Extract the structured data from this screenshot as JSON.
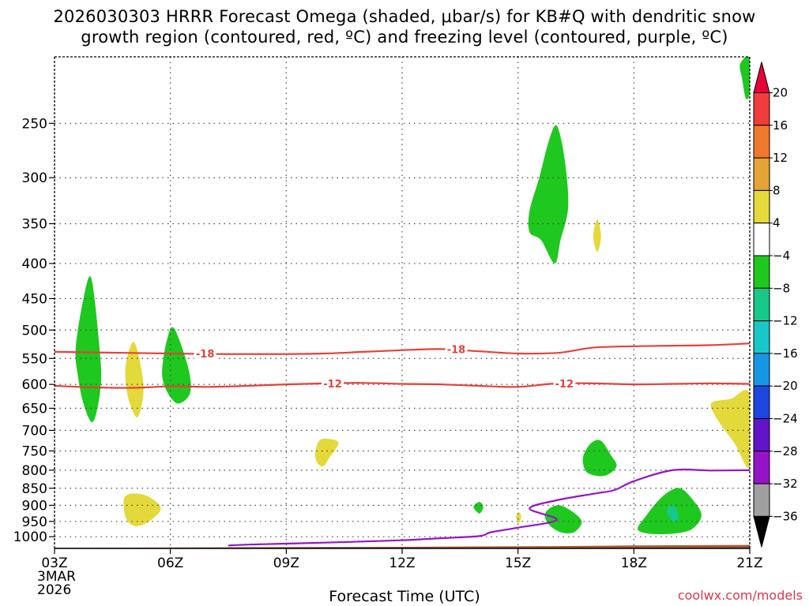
{
  "title": {
    "line1": "2026030303 HRRR Forecast Omega (shaded, μbar/s) for KB#Q with dendritic snow",
    "line2": "growth region (contoured, red, ºC) and freezing level (contoured, purple, ºC)"
  },
  "xlabel": "Forecast Time (UTC)",
  "credit": "coolwx.com/models",
  "chart_data": {
    "type": "heatmap",
    "title": "2026030303 HRRR Forecast Omega (shaded, μbar/s) for KB#Q with dendritic snow growth region (contoured, red, ºC) and freezing level (contoured, purple, ºC)",
    "xlabel": "Forecast Time (UTC)",
    "ylabel": "",
    "x_unit": "forecast hour UTC",
    "xlim": [
      3,
      21
    ],
    "ylim": [
      1040,
      200
    ],
    "y_scale": "log",
    "x_ticks": [
      {
        "x": 3,
        "label": "03Z",
        "sub": [
          "3MAR",
          "2026"
        ]
      },
      {
        "x": 6,
        "label": "06Z"
      },
      {
        "x": 9,
        "label": "09Z"
      },
      {
        "x": 12,
        "label": "12Z"
      },
      {
        "x": 15,
        "label": "15Z"
      },
      {
        "x": 18,
        "label": "18Z"
      },
      {
        "x": 21,
        "label": "21Z"
      }
    ],
    "y_ticks": [
      250,
      300,
      350,
      400,
      450,
      500,
      550,
      600,
      650,
      700,
      750,
      800,
      850,
      900,
      950,
      1000
    ],
    "grid": true,
    "colorbar": {
      "position": "right",
      "levels": [
        20,
        16,
        12,
        8,
        4,
        -4,
        -8,
        -12,
        -16,
        -20,
        -24,
        -28,
        -32,
        -36
      ],
      "colors": [
        "#e8003a",
        "#f03c3a",
        "#ef7a2e",
        "#e4a536",
        "#e4d93a",
        "#ffffff",
        "#1ec81e",
        "#16c88a",
        "#18c8c8",
        "#1896e6",
        "#1e46e0",
        "#6414c8",
        "#9614c8",
        "#a0a0a0",
        "#000000"
      ]
    },
    "contours": [
      {
        "name": "-18",
        "color": "#e8403a",
        "points": [
          [
            3,
            538
          ],
          [
            4,
            539
          ],
          [
            5,
            540
          ],
          [
            6,
            541
          ],
          [
            7,
            542
          ],
          [
            8,
            542
          ],
          [
            9,
            542
          ],
          [
            10,
            541
          ],
          [
            11,
            538
          ],
          [
            12,
            535
          ],
          [
            13,
            533
          ],
          [
            14,
            537
          ],
          [
            15,
            541
          ],
          [
            16,
            540
          ],
          [
            16.5,
            535
          ],
          [
            17,
            530
          ],
          [
            18,
            528
          ],
          [
            19,
            527
          ],
          [
            20,
            526
          ],
          [
            21,
            523
          ]
        ],
        "labels": [
          {
            "x": 6.9,
            "y": 541
          },
          {
            "x": 13.4,
            "y": 533
          }
        ]
      },
      {
        "name": "-12",
        "color": "#e8403a",
        "points": [
          [
            3,
            603
          ],
          [
            4,
            606
          ],
          [
            5,
            607
          ],
          [
            6,
            604
          ],
          [
            7,
            605
          ],
          [
            8,
            603
          ],
          [
            9,
            600
          ],
          [
            10,
            598
          ],
          [
            11,
            597
          ],
          [
            12,
            599
          ],
          [
            13,
            600
          ],
          [
            14,
            603
          ],
          [
            15,
            605
          ],
          [
            16,
            598
          ],
          [
            17,
            598
          ],
          [
            18,
            600
          ],
          [
            19,
            599
          ],
          [
            20,
            598
          ],
          [
            21,
            599
          ]
        ],
        "labels": [
          {
            "x": 10.2,
            "y": 598
          },
          {
            "x": 16.2,
            "y": 598
          }
        ]
      },
      {
        "name": "0",
        "color": "#9614c8",
        "points": [
          [
            7.5,
            1030
          ],
          [
            8,
            1027
          ],
          [
            10,
            1020
          ],
          [
            12,
            1012
          ],
          [
            13,
            1005
          ],
          [
            14,
            998
          ],
          [
            14.3,
            985
          ],
          [
            15,
            970
          ],
          [
            16,
            945
          ],
          [
            15.3,
            910
          ],
          [
            16,
            885
          ],
          [
            17,
            865
          ],
          [
            17.5,
            855
          ],
          [
            18,
            830
          ],
          [
            19,
            800
          ],
          [
            20,
            801
          ],
          [
            21,
            800
          ]
        ],
        "labels": []
      }
    ],
    "shaded": [
      {
        "value": -6,
        "color": "#1ec81e",
        "points": [
          [
            3.55,
            530
          ],
          [
            3.75,
            450
          ],
          [
            3.95,
            420
          ],
          [
            4.15,
            520
          ],
          [
            4.2,
            600
          ],
          [
            4.0,
            680
          ],
          [
            3.75,
            640
          ],
          [
            3.6,
            580
          ]
        ]
      },
      {
        "value": -6,
        "color": "#1ec81e",
        "points": [
          [
            5.8,
            560
          ],
          [
            5.9,
            520
          ],
          [
            6.05,
            495
          ],
          [
            6.25,
            520
          ],
          [
            6.5,
            580
          ],
          [
            6.5,
            620
          ],
          [
            6.2,
            640
          ],
          [
            5.95,
            620
          ],
          [
            5.8,
            590
          ]
        ]
      },
      {
        "value": 6,
        "color": "#e4d93a",
        "points": [
          [
            4.85,
            560
          ],
          [
            5.05,
            520
          ],
          [
            5.25,
            570
          ],
          [
            5.3,
            620
          ],
          [
            5.15,
            670
          ],
          [
            4.95,
            640
          ],
          [
            4.85,
            600
          ]
        ]
      },
      {
        "value": 6,
        "color": "#e4d93a",
        "points": [
          [
            4.8,
            880
          ],
          [
            5.05,
            865
          ],
          [
            5.45,
            875
          ],
          [
            5.75,
            910
          ],
          [
            5.45,
            950
          ],
          [
            5.1,
            965
          ],
          [
            4.85,
            940
          ]
        ]
      },
      {
        "value": 6,
        "color": "#e4d93a",
        "points": [
          [
            9.75,
            755
          ],
          [
            9.85,
            725
          ],
          [
            10.05,
            720
          ],
          [
            10.35,
            730
          ],
          [
            10.1,
            770
          ],
          [
            9.95,
            790
          ],
          [
            9.8,
            780
          ]
        ]
      },
      {
        "value": -6,
        "color": "#1ec81e",
        "points": [
          [
            15.3,
            335
          ],
          [
            15.55,
            300
          ],
          [
            15.8,
            265
          ],
          [
            16.0,
            252
          ],
          [
            16.2,
            280
          ],
          [
            16.3,
            330
          ],
          [
            16.1,
            370
          ],
          [
            15.95,
            400
          ],
          [
            15.6,
            370
          ],
          [
            15.3,
            360
          ]
        ]
      },
      {
        "value": 6,
        "color": "#e4d93a",
        "points": [
          [
            16.95,
            365
          ],
          [
            17.05,
            345
          ],
          [
            17.15,
            365
          ],
          [
            17.05,
            385
          ]
        ]
      },
      {
        "value": -6,
        "color": "#1ec81e",
        "points": [
          [
            16.7,
            760
          ],
          [
            16.9,
            730
          ],
          [
            17.15,
            725
          ],
          [
            17.4,
            760
          ],
          [
            17.55,
            790
          ],
          [
            17.25,
            815
          ],
          [
            16.85,
            810
          ],
          [
            16.7,
            790
          ]
        ]
      },
      {
        "value": -6,
        "color": "#1ec81e",
        "points": [
          [
            13.85,
            905
          ],
          [
            14.0,
            890
          ],
          [
            14.1,
            905
          ],
          [
            14.0,
            925
          ]
        ]
      },
      {
        "value": 6,
        "color": "#e4d93a",
        "points": [
          [
            14.95,
            935
          ],
          [
            15.02,
            920
          ],
          [
            15.08,
            935
          ],
          [
            15.02,
            955
          ]
        ]
      },
      {
        "value": -6,
        "color": "#1ec81e",
        "points": [
          [
            15.7,
            925
          ],
          [
            16.0,
            900
          ],
          [
            16.35,
            915
          ],
          [
            16.65,
            950
          ],
          [
            16.45,
            985
          ],
          [
            16.1,
            985
          ],
          [
            15.8,
            960
          ]
        ]
      },
      {
        "value": -6,
        "color": "#1ec81e",
        "points": [
          [
            18.1,
            975
          ],
          [
            18.3,
            935
          ],
          [
            18.6,
            890
          ],
          [
            18.9,
            860
          ],
          [
            19.2,
            850
          ],
          [
            19.5,
            880
          ],
          [
            19.75,
            930
          ],
          [
            19.5,
            975
          ],
          [
            19.0,
            990
          ],
          [
            18.4,
            990
          ]
        ]
      },
      {
        "value": -10,
        "color": "#16c88a",
        "points": [
          [
            18.85,
            920
          ],
          [
            18.95,
            900
          ],
          [
            19.1,
            910
          ],
          [
            19.15,
            940
          ],
          [
            19.0,
            950
          ]
        ]
      },
      {
        "value": 6,
        "color": "#e4d93a",
        "points": [
          [
            20.0,
            640
          ],
          [
            20.5,
            630
          ],
          [
            21.0,
            620
          ],
          [
            21.0,
            790
          ],
          [
            20.6,
            730
          ],
          [
            20.2,
            680
          ]
        ]
      },
      {
        "value": -6,
        "color": "#1ec81e",
        "points": [
          [
            20.75,
            205
          ],
          [
            21.0,
            200
          ],
          [
            21.0,
            225
          ],
          [
            20.9,
            230
          ],
          [
            20.8,
            215
          ]
        ]
      }
    ],
    "terrain": {
      "color": "#a65a32",
      "points": [
        [
          3,
          1038
        ],
        [
          8,
          1036
        ],
        [
          13,
          1034
        ],
        [
          16,
          1032
        ],
        [
          18,
          1030
        ],
        [
          21,
          1028
        ]
      ]
    }
  }
}
